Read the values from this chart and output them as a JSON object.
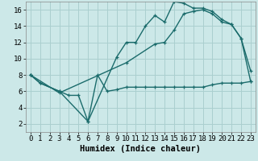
{
  "bg_color": "#cce8e8",
  "line_color": "#1a6b6b",
  "grid_color": "#aacfcf",
  "xlabel": "Humidex (Indice chaleur)",
  "xlabel_fontsize": 7.5,
  "tick_fontsize": 6.5,
  "xlim": [
    -0.5,
    23.5
  ],
  "ylim": [
    1,
    17
  ],
  "yticks": [
    2,
    4,
    6,
    8,
    10,
    12,
    14,
    16
  ],
  "xticks": [
    0,
    1,
    2,
    3,
    4,
    5,
    6,
    7,
    8,
    9,
    10,
    11,
    12,
    13,
    14,
    15,
    16,
    17,
    18,
    19,
    20,
    21,
    22,
    23
  ],
  "line1_x": [
    0,
    1,
    3,
    4,
    5,
    6,
    7,
    8,
    9,
    10,
    11,
    12,
    13,
    14,
    15,
    16,
    17,
    18,
    19,
    20,
    21,
    22,
    23
  ],
  "line1_y": [
    8.0,
    7.0,
    6.0,
    5.5,
    5.5,
    2.3,
    8.0,
    6.0,
    6.2,
    6.5,
    6.5,
    6.5,
    6.5,
    6.5,
    6.5,
    6.5,
    6.5,
    6.5,
    6.8,
    7.0,
    7.0,
    7.0,
    7.2
  ],
  "line2_x": [
    0,
    1,
    3,
    6,
    9,
    10,
    11,
    12,
    13,
    14,
    15,
    16,
    17,
    18,
    19,
    20,
    21,
    22,
    23
  ],
  "line2_y": [
    8.0,
    7.0,
    6.0,
    2.3,
    10.2,
    12.0,
    12.0,
    14.0,
    15.3,
    14.5,
    17.0,
    16.8,
    16.2,
    16.2,
    15.8,
    14.8,
    14.2,
    12.5,
    7.2
  ],
  "line3_x": [
    0,
    3,
    10,
    13,
    14,
    15,
    16,
    17,
    18,
    19,
    20,
    21,
    22,
    23
  ],
  "line3_y": [
    8.0,
    5.8,
    9.5,
    11.8,
    12.0,
    13.5,
    15.5,
    15.8,
    16.0,
    15.5,
    14.5,
    14.2,
    12.5,
    8.5
  ],
  "marker": "+",
  "markersize": 3.5,
  "linewidth": 1.0
}
